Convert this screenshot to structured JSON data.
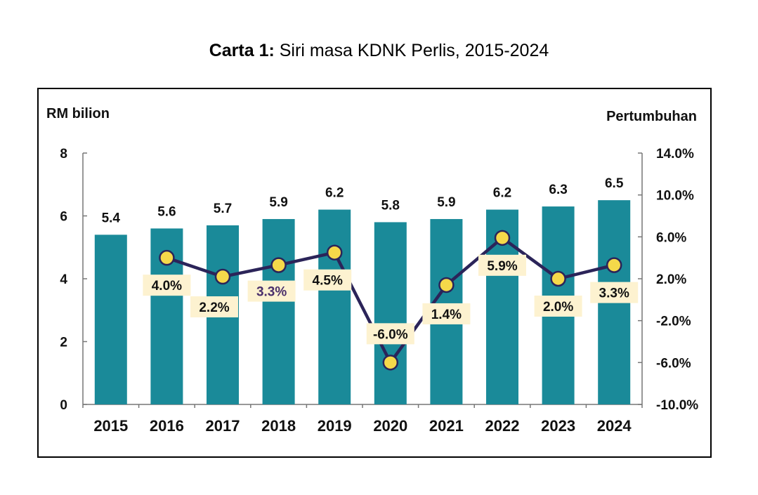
{
  "title": {
    "prefix": "Carta 1:",
    "text": " Siri masa KDNK Perlis, 2015-2024"
  },
  "chart_data": {
    "type": "bar+line",
    "categories": [
      "2015",
      "2016",
      "2017",
      "2018",
      "2019",
      "2020",
      "2021",
      "2022",
      "2023",
      "2024"
    ],
    "bar_series": {
      "values": [
        5.4,
        5.6,
        5.7,
        5.9,
        6.2,
        5.8,
        5.9,
        6.2,
        6.3,
        6.5
      ],
      "color": "#1a8a99"
    },
    "bar_labels": [
      "5.4",
      "5.6",
      "5.7",
      "5.9",
      "6.2",
      "5.8",
      "5.9",
      "6.2",
      "6.3",
      "6.5"
    ],
    "line_series": {
      "values": [
        null,
        4.0,
        2.2,
        3.3,
        4.5,
        -6.0,
        1.4,
        5.9,
        2.0,
        3.3
      ],
      "labels": [
        "",
        "4.0%",
        "2.2%",
        "3.3%",
        "4.5%",
        "-6.0%",
        "1.4%",
        "5.9%",
        "2.0%",
        "3.3%"
      ],
      "line_color": "#2b2459",
      "marker_color": "#f5d94a",
      "label_bg": "#fdf2d0"
    },
    "left_axis": {
      "label": "RM bilion",
      "ylim": [
        0,
        8
      ],
      "ticks": [
        "0",
        "2",
        "4",
        "6",
        "8"
      ]
    },
    "right_axis": {
      "label": "Pertumbuhan",
      "ylim": [
        -10,
        14
      ],
      "ticks": [
        "-10.0%",
        "-6.0%",
        "-2.0%",
        "2.0%",
        "6.0%",
        "10.0%",
        "14.0%"
      ]
    },
    "grid": false
  }
}
